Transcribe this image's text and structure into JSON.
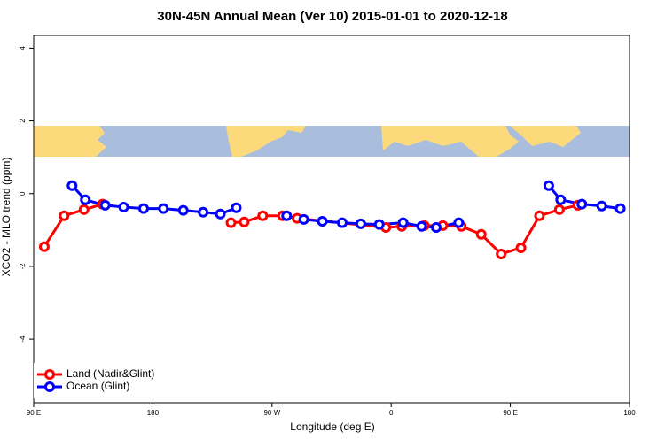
{
  "chart_data": {
    "type": "line",
    "title": "30N-45N Annual Mean (Ver 10)   2015-01-01 to 2020-12-18",
    "x_label": "Longitude (deg E)",
    "y_label": "XCO2 - MLO trend (ppm)",
    "xlim": [
      90,
      540
    ],
    "xticks": [
      {
        "value": 90,
        "label": "90 E"
      },
      180,
      {
        "value": 270,
        "label": "90 W"
      },
      {
        "value": 360,
        "label": "0"
      },
      {
        "value": 450,
        "label": "90 E"
      },
      {
        "value": 540,
        "label": "180"
      }
    ],
    "ylim": [
      -5.75,
      4.35
    ],
    "yticks": [
      -4,
      -2,
      0,
      2,
      4
    ],
    "legend": "bottom-left",
    "series": [
      {
        "name": "Land (Nadir&Glint)",
        "color": "#ff0000",
        "x": [
          98,
          113,
          128,
          142,
          null,
          239,
          249,
          263,
          278,
          289,
          356,
          368,
          385,
          399,
          413,
          428,
          443,
          458,
          472,
          487,
          501
        ],
        "values": [
          -1.46,
          -0.61,
          -0.44,
          -0.29,
          null,
          -0.8,
          -0.78,
          -0.61,
          -0.61,
          -0.68,
          -0.93,
          -0.9,
          -0.88,
          -0.88,
          -0.9,
          -1.12,
          -1.66,
          -1.49,
          -0.61,
          -0.44,
          -0.32
        ]
      },
      {
        "name": "Ocean (Glint)",
        "color": "#0000ff",
        "x": [
          119,
          129,
          144,
          158,
          173,
          188,
          203,
          218,
          231,
          243,
          null,
          281,
          294,
          308,
          323,
          337,
          351,
          369,
          383,
          394,
          411,
          null,
          479,
          488,
          504,
          519,
          533
        ],
        "values": [
          0.22,
          -0.17,
          -0.32,
          -0.37,
          -0.41,
          -0.41,
          -0.46,
          -0.51,
          -0.56,
          -0.39,
          null,
          -0.61,
          -0.71,
          -0.76,
          -0.8,
          -0.83,
          -0.85,
          -0.8,
          -0.9,
          -0.93,
          -0.8,
          null,
          0.22,
          -0.17,
          -0.29,
          -0.34,
          -0.41
        ]
      }
    ]
  }
}
